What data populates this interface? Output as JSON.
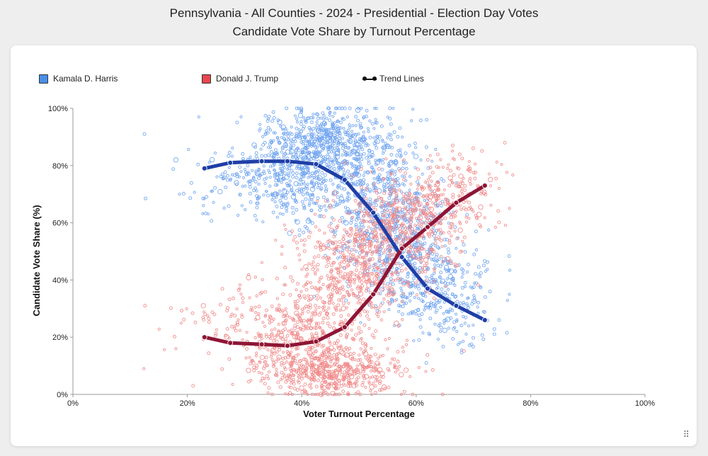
{
  "title": "Pennsylvania - All Counties - 2024 - Presidential - Election Day Votes",
  "subtitle": "Candidate Vote Share by Turnout Percentage",
  "legend": {
    "harris_label": "Kamala D. Harris",
    "trump_label": "Donald J. Trump",
    "trend_label": "Trend Lines"
  },
  "resize_icon": "⠿",
  "colors": {
    "harris": "#4a8fe8",
    "trump": "#e8474f",
    "harris_scatter": "#6fa3ef",
    "trump_scatter": "#f08a8a",
    "harris_trend": "#1f3ea6",
    "trump_trend": "#8e1535"
  },
  "chart_data": {
    "type": "scatter",
    "title": "Pennsylvania - All Counties - 2024 - Presidential - Election Day Votes",
    "subtitle": "Candidate Vote Share by Turnout Percentage",
    "xlabel": "Voter Turnout Percentage",
    "ylabel": "Candidate Vote Share (%)",
    "xlim": [
      0,
      100
    ],
    "ylim": [
      0,
      100
    ],
    "x_ticks": [
      "0%",
      "20%",
      "40%",
      "60%",
      "80%",
      "100%"
    ],
    "y_ticks": [
      "0%",
      "20%",
      "40%",
      "60%",
      "80%",
      "100%"
    ],
    "grid": false,
    "legend_position": "top-left",
    "scatter_series": [
      {
        "name": "Kamala D. Harris",
        "color_key": "harris_scatter",
        "clusters": [
          {
            "cx": 45,
            "cy": 88,
            "sx": 6,
            "sy": 6,
            "n": 550
          },
          {
            "cx": 38,
            "cy": 75,
            "sx": 6,
            "sy": 8,
            "n": 380
          },
          {
            "cx": 53,
            "cy": 70,
            "sx": 5,
            "sy": 10,
            "n": 420
          },
          {
            "cx": 58,
            "cy": 50,
            "sx": 5,
            "sy": 10,
            "n": 420
          },
          {
            "cx": 63,
            "cy": 35,
            "sx": 5,
            "sy": 7,
            "n": 200
          },
          {
            "cx": 68,
            "cy": 25,
            "sx": 3,
            "sy": 5,
            "n": 60
          },
          {
            "cx": 28,
            "cy": 75,
            "sx": 5,
            "sy": 6,
            "n": 55
          }
        ],
        "points": [
          [
            12.5,
            91
          ],
          [
            12.7,
            68.5
          ],
          [
            18,
            82
          ],
          [
            22,
            97
          ],
          [
            22.8,
            66
          ],
          [
            76.3,
            35
          ],
          [
            74.5,
            26
          ]
        ]
      },
      {
        "name": "Donald J. Trump",
        "color_key": "trump_scatter",
        "clusters": [
          {
            "cx": 45,
            "cy": 9,
            "sx": 6,
            "sy": 5,
            "n": 550
          },
          {
            "cx": 38,
            "cy": 22,
            "sx": 6,
            "sy": 8,
            "n": 330
          },
          {
            "cx": 48,
            "cy": 42,
            "sx": 5,
            "sy": 10,
            "n": 420
          },
          {
            "cx": 56,
            "cy": 56,
            "sx": 5,
            "sy": 10,
            "n": 420
          },
          {
            "cx": 63,
            "cy": 67,
            "sx": 5,
            "sy": 7,
            "n": 210
          },
          {
            "cx": 68,
            "cy": 76,
            "sx": 3,
            "sy": 5,
            "n": 60
          },
          {
            "cx": 28,
            "cy": 25,
            "sx": 5,
            "sy": 6,
            "n": 50
          }
        ],
        "points": [
          [
            12.4,
            9
          ],
          [
            12.6,
            31
          ],
          [
            18,
            16
          ],
          [
            21,
            3
          ],
          [
            22.8,
            31
          ],
          [
            76.3,
            65
          ],
          [
            74.5,
            72
          ]
        ]
      }
    ],
    "series": [
      {
        "name": "Kamala D. Harris",
        "color_key": "harris_trend",
        "x": [
          23,
          27.5,
          33,
          37.5,
          42.5,
          47.5,
          52.5,
          57.5,
          62,
          67,
          72
        ],
        "y": [
          79,
          81,
          81.5,
          81.5,
          80.5,
          75,
          63.5,
          48,
          37,
          31,
          26
        ]
      },
      {
        "name": "Donald J. Trump",
        "color_key": "trump_trend",
        "x": [
          23,
          27.5,
          33,
          37.5,
          42.5,
          47.5,
          52.5,
          57.5,
          62,
          67,
          72
        ],
        "y": [
          20,
          18,
          17.5,
          17,
          18.5,
          23.5,
          35,
          51,
          58.5,
          67,
          73
        ]
      }
    ]
  }
}
